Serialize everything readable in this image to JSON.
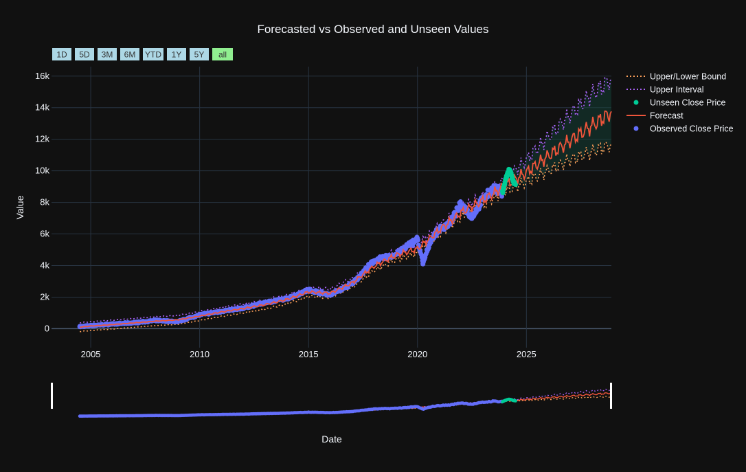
{
  "modebar": {
    "buttons": [
      {
        "name": "camera-icon"
      },
      {
        "name": "zoom-icon"
      },
      {
        "name": "pan-icon"
      },
      {
        "name": "box-select-icon"
      },
      {
        "name": "lasso-select-icon"
      },
      {
        "name": "zoom-in-icon"
      },
      {
        "name": "zoom-out-icon"
      },
      {
        "name": "autoscale-icon"
      },
      {
        "name": "reset-axes-icon"
      },
      {
        "name": "plotly-logo-icon"
      }
    ],
    "icon_color": "#7d8a99"
  },
  "range_selector": {
    "buttons": [
      "1D",
      "5D",
      "3M",
      "6M",
      "YTD",
      "1Y",
      "5Y",
      "all"
    ],
    "active": "all",
    "button_color": "#add8e6",
    "active_color": "#90ee90"
  },
  "chart_data": {
    "type": "line",
    "title": "Forecasted vs Observed and Unseen Values",
    "xlabel": "Date",
    "ylabel": "Value",
    "xlim": [
      2003.2,
      2028.9
    ],
    "ylim": [
      -1200,
      16600
    ],
    "x_ticks": [
      2005,
      2010,
      2015,
      2020,
      2025
    ],
    "x_tick_labels": [
      "2005",
      "2010",
      "2015",
      "2020",
      "2025"
    ],
    "y_ticks": [
      0,
      2000,
      4000,
      6000,
      8000,
      10000,
      12000,
      14000,
      16000
    ],
    "y_tick_labels": [
      "0",
      "2k",
      "4k",
      "6k",
      "8k",
      "10k",
      "12k",
      "14k",
      "16k"
    ],
    "grid": true,
    "legend_position": "top-right",
    "legend": [
      "Upper/Lower Bound",
      "Upper Interval",
      "Unseen Close Price",
      "Forecast",
      "Observed Close Price"
    ],
    "series": [
      {
        "name": "Forecast",
        "color": "#ef553b",
        "x": [
          2004.5,
          2005,
          2006,
          2007,
          2008,
          2009,
          2010,
          2011,
          2012,
          2013,
          2014,
          2015,
          2016,
          2017,
          2018,
          2019,
          2020,
          2021,
          2022,
          2023,
          2024,
          2025,
          2026,
          2027,
          2028,
          2028.9
        ],
        "y": [
          100,
          170,
          260,
          370,
          480,
          560,
          800,
          1060,
          1280,
          1520,
          1850,
          2330,
          2250,
          2900,
          3950,
          4650,
          5050,
          6250,
          7350,
          8120,
          9050,
          9900,
          10950,
          11900,
          12850,
          13700
        ]
      },
      {
        "name": "Upper Interval",
        "color": "#ab63fa",
        "x": [
          2004.5,
          2005,
          2006,
          2007,
          2008,
          2009,
          2010,
          2011,
          2012,
          2013,
          2014,
          2015,
          2016,
          2017,
          2018,
          2019,
          2020,
          2021,
          2022,
          2023,
          2024,
          2025,
          2026,
          2027,
          2028,
          2028.9
        ],
        "y": [
          380,
          450,
          540,
          650,
          760,
          840,
          1080,
          1340,
          1560,
          1800,
          2130,
          2610,
          2530,
          3180,
          4230,
          4930,
          5330,
          6530,
          7630,
          8400,
          9400,
          10700,
          12150,
          13550,
          14850,
          15800
        ]
      },
      {
        "name": "Upper/Lower Bound",
        "color": "#ffa15a",
        "x": [
          2004.5,
          2005,
          2006,
          2007,
          2008,
          2009,
          2010,
          2011,
          2012,
          2013,
          2014,
          2015,
          2016,
          2017,
          2018,
          2019,
          2020,
          2021,
          2022,
          2023,
          2024,
          2025,
          2026,
          2027,
          2028,
          2028.9
        ],
        "y": [
          -180,
          -110,
          -20,
          90,
          200,
          280,
          520,
          780,
          1000,
          1240,
          1570,
          2050,
          1970,
          2620,
          3670,
          4370,
          4770,
          5970,
          7070,
          7840,
          8700,
          9300,
          10000,
          10700,
          11200,
          11650
        ]
      },
      {
        "name": "Observed Close Price",
        "color": "#636efa",
        "x": [
          2004.5,
          2005,
          2006,
          2007,
          2008,
          2009,
          2010,
          2011,
          2012,
          2013,
          2014,
          2015,
          2016,
          2017,
          2018,
          2019,
          2020,
          2020.25,
          2020.6,
          2021,
          2021.5,
          2022,
          2022.5,
          2023,
          2023.5,
          2023.9
        ],
        "y": [
          130,
          200,
          290,
          380,
          520,
          450,
          880,
          1100,
          1300,
          1650,
          1900,
          2450,
          2150,
          2850,
          4300,
          4700,
          5700,
          4100,
          5600,
          6300,
          6700,
          7900,
          7100,
          8200,
          8900,
          8600
        ]
      },
      {
        "name": "Unseen Close Price",
        "color": "#00cc96",
        "x": [
          2023.9,
          2024.0,
          2024.1,
          2024.2,
          2024.3,
          2024.4,
          2024.5
        ],
        "y": [
          8600,
          9200,
          9700,
          10050,
          9800,
          9300,
          9100
        ]
      }
    ]
  }
}
